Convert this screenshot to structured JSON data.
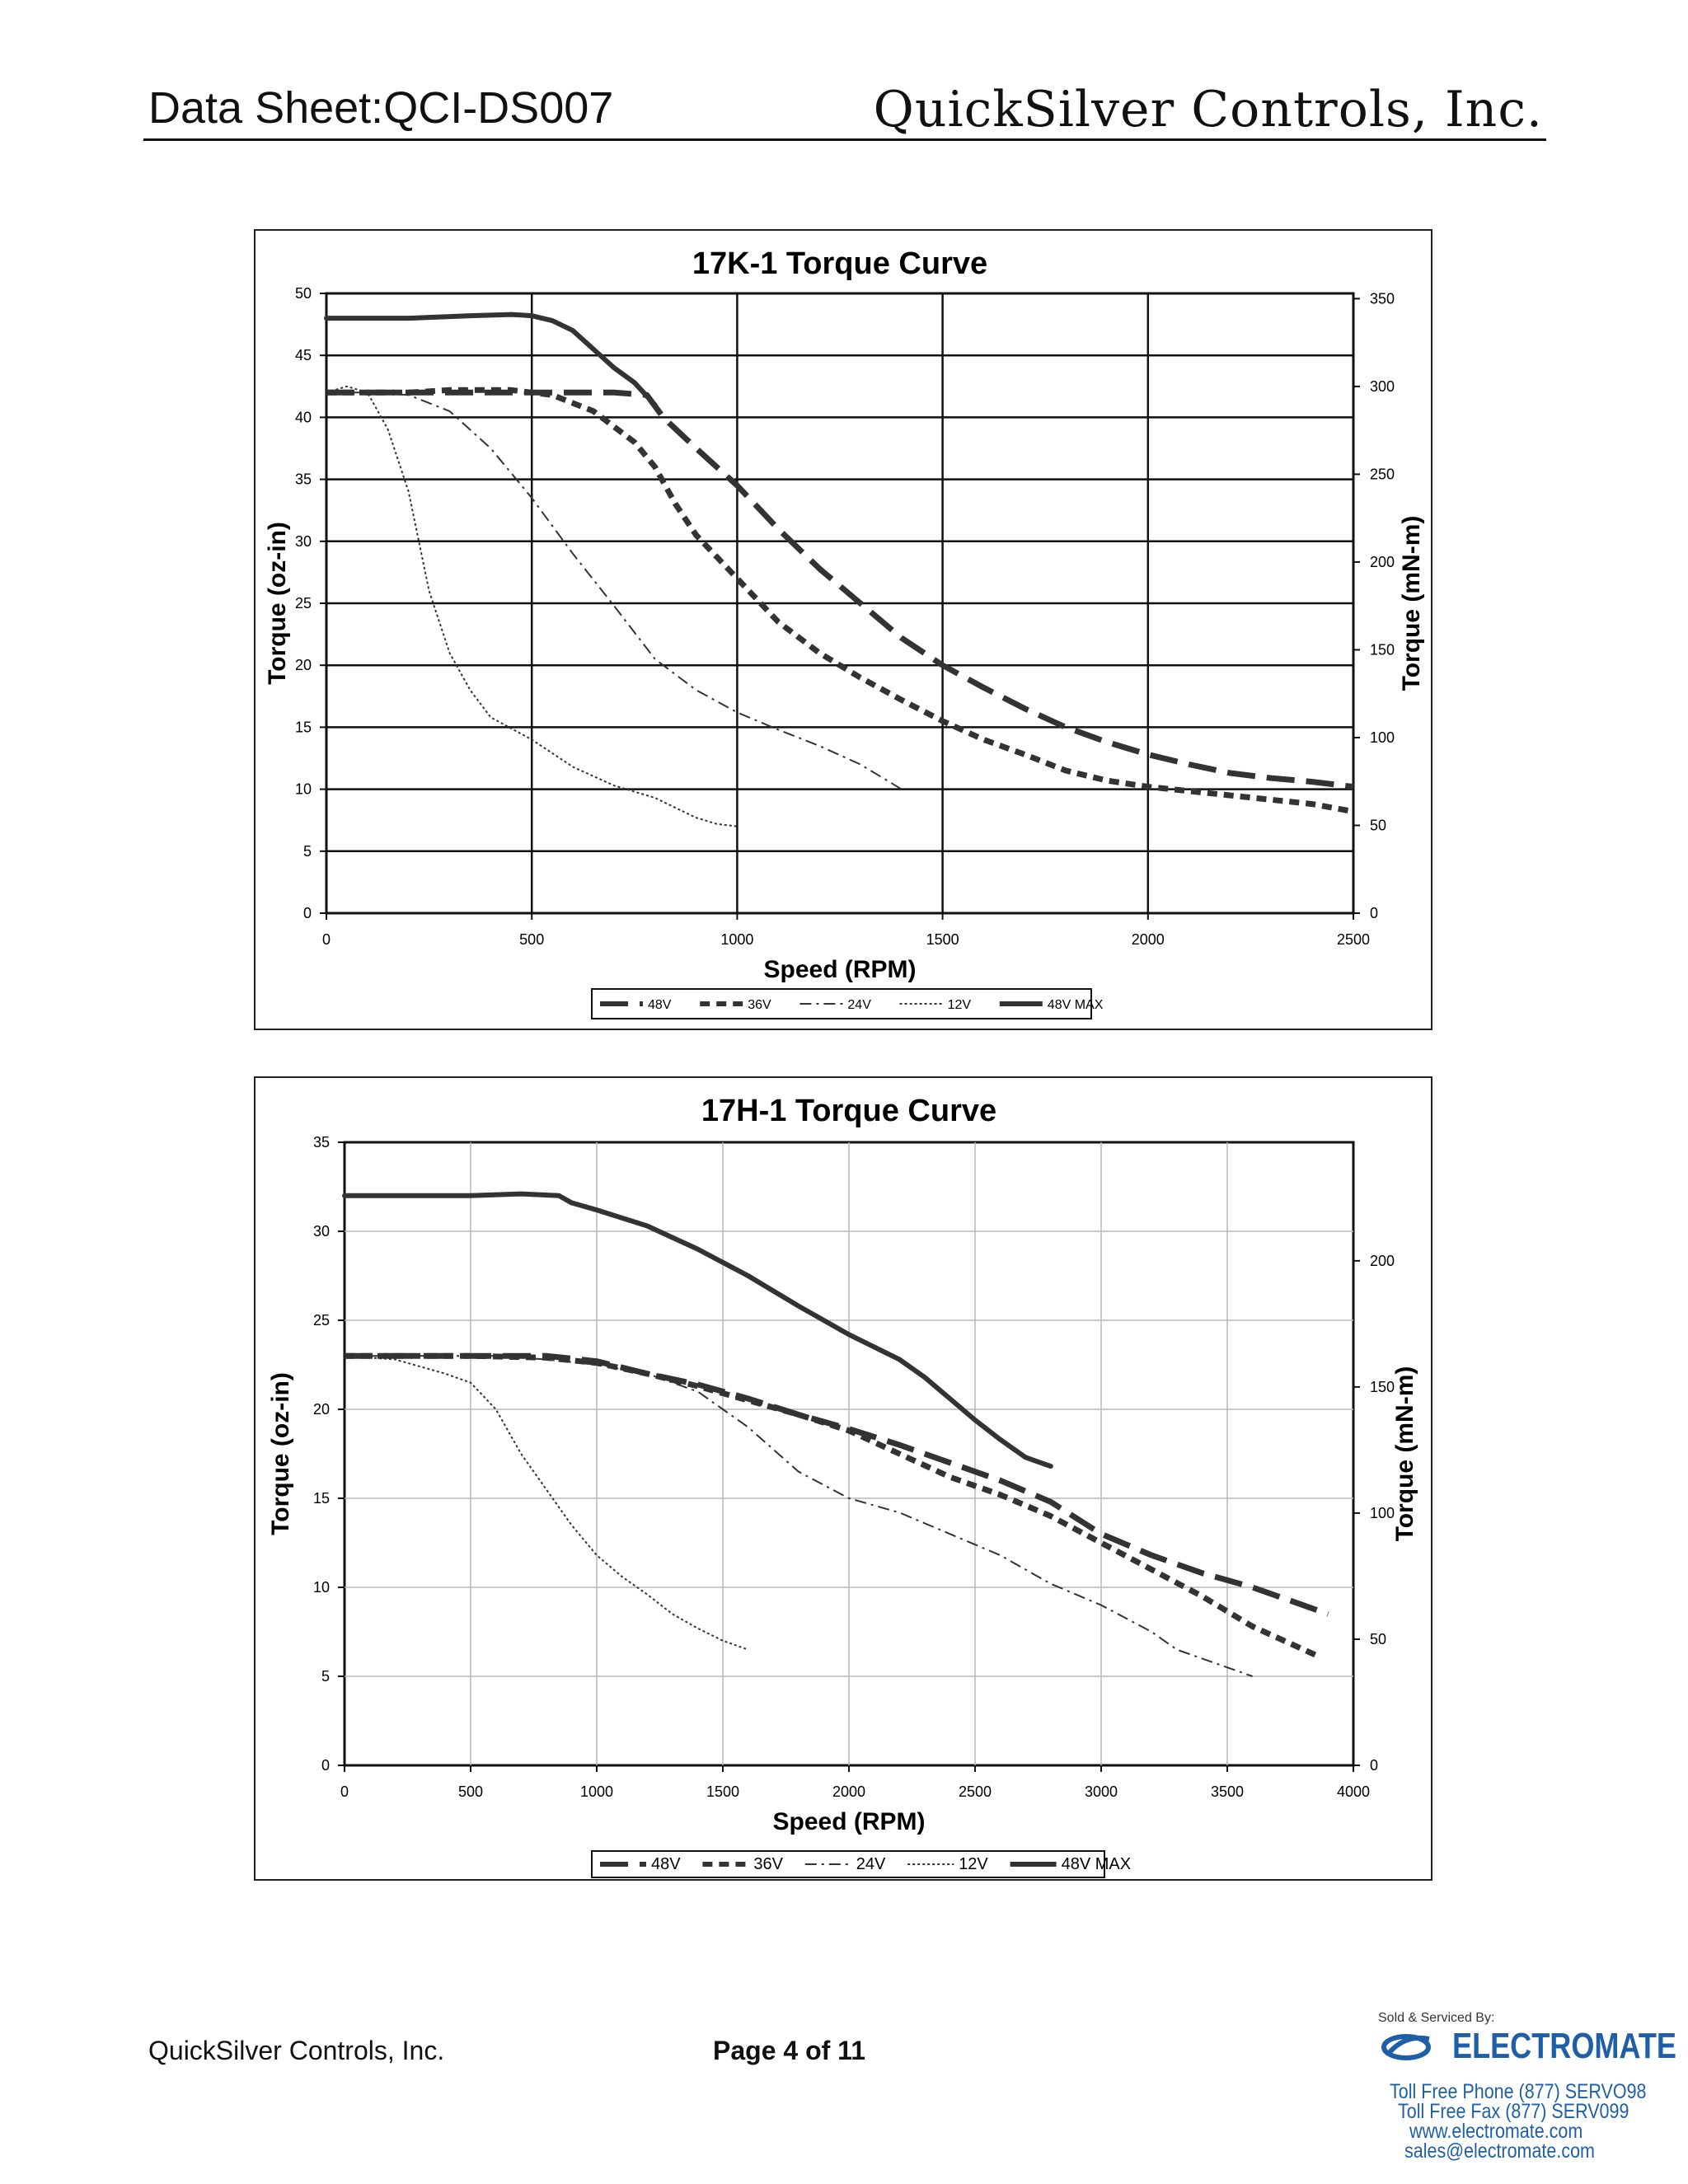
{
  "header": {
    "left": "Data Sheet:QCI-DS007",
    "right": "QuickSilver Controls, Inc."
  },
  "footer": {
    "company": "QuickSilver Controls, Inc.",
    "page": "Page 4 of 11"
  },
  "electromate": {
    "sold_by": "Sold & Serviced By:",
    "brand": "ELECTROMATE",
    "phone": "Toll Free Phone  (877) SERVO98",
    "fax": "Toll Free Fax  (877) SERV099",
    "web": "www.electromate.com",
    "email": "sales@electromate.com",
    "color": "#1f5fa8"
  },
  "chart_data": [
    {
      "type": "line",
      "title": "17K-1 Torque Curve",
      "xlabel": "Speed (RPM)",
      "ylabel": "Torque (oz-in)",
      "y2label": "Torque (mN-m)",
      "xlim": [
        0,
        2500
      ],
      "ylim": [
        0,
        50
      ],
      "y2lim": [
        0,
        353
      ],
      "xticks": [
        0,
        500,
        1000,
        1500,
        2000,
        2500
      ],
      "yticks": [
        0,
        5,
        10,
        15,
        20,
        25,
        30,
        35,
        40,
        45,
        50
      ],
      "y2ticks": [
        0,
        50,
        100,
        150,
        200,
        250,
        300,
        350
      ],
      "grid": "major, solid black",
      "legend_position": "bottom",
      "series": [
        {
          "name": "48V",
          "style": "long-dash",
          "points": [
            [
              0,
              42
            ],
            [
              200,
              42
            ],
            [
              400,
              42
            ],
            [
              600,
              42
            ],
            [
              700,
              42
            ],
            [
              780,
              41.8
            ],
            [
              820,
              40
            ],
            [
              900,
              37.5
            ],
            [
              1000,
              34.5
            ],
            [
              1100,
              31
            ],
            [
              1200,
              27.8
            ],
            [
              1300,
              25
            ],
            [
              1400,
              22.2
            ],
            [
              1500,
              20
            ],
            [
              1600,
              18.2
            ],
            [
              1700,
              16.5
            ],
            [
              1800,
              15
            ],
            [
              1900,
              13.8
            ],
            [
              2000,
              12.8
            ],
            [
              2100,
              12
            ],
            [
              2200,
              11.3
            ],
            [
              2300,
              10.9
            ],
            [
              2400,
              10.6
            ],
            [
              2500,
              10.2
            ]
          ]
        },
        {
          "name": "36V",
          "style": "short-dash",
          "points": [
            [
              0,
              42
            ],
            [
              200,
              42
            ],
            [
              300,
              42.2
            ],
            [
              450,
              42.2
            ],
            [
              550,
              41.8
            ],
            [
              650,
              40.5
            ],
            [
              750,
              38
            ],
            [
              800,
              36
            ],
            [
              850,
              33
            ],
            [
              900,
              30.5
            ],
            [
              1000,
              27
            ],
            [
              1100,
              23.5
            ],
            [
              1200,
              21
            ],
            [
              1300,
              19
            ],
            [
              1400,
              17.2
            ],
            [
              1500,
              15.5
            ],
            [
              1600,
              14
            ],
            [
              1700,
              12.8
            ],
            [
              1800,
              11.5
            ],
            [
              1900,
              10.7
            ],
            [
              2000,
              10.2
            ],
            [
              2200,
              9.5
            ],
            [
              2400,
              8.8
            ],
            [
              2500,
              8.2
            ]
          ]
        },
        {
          "name": "24V",
          "style": "dash-dot",
          "points": [
            [
              0,
              42
            ],
            [
              100,
              42
            ],
            [
              200,
              41.8
            ],
            [
              300,
              40.5
            ],
            [
              400,
              37.5
            ],
            [
              500,
              33.5
            ],
            [
              600,
              29
            ],
            [
              700,
              24.8
            ],
            [
              800,
              20.5
            ],
            [
              900,
              18
            ],
            [
              1000,
              16.2
            ],
            [
              1100,
              14.8
            ],
            [
              1200,
              13.5
            ],
            [
              1300,
              12
            ],
            [
              1400,
              10
            ]
          ]
        },
        {
          "name": "12V",
          "style": "dotted",
          "points": [
            [
              0,
              42
            ],
            [
              50,
              42.5
            ],
            [
              100,
              42
            ],
            [
              150,
              39
            ],
            [
              200,
              34
            ],
            [
              250,
              26
            ],
            [
              300,
              21
            ],
            [
              350,
              18
            ],
            [
              400,
              15.8
            ],
            [
              500,
              14
            ],
            [
              600,
              11.8
            ],
            [
              700,
              10.3
            ],
            [
              800,
              9.3
            ],
            [
              850,
              8.5
            ],
            [
              900,
              7.7
            ],
            [
              950,
              7.2
            ],
            [
              1000,
              7
            ]
          ]
        },
        {
          "name": "48V MAX",
          "style": "solid-thick",
          "points": [
            [
              0,
              48
            ],
            [
              200,
              48
            ],
            [
              350,
              48.2
            ],
            [
              450,
              48.3
            ],
            [
              500,
              48.2
            ],
            [
              550,
              47.8
            ],
            [
              600,
              47
            ],
            [
              650,
              45.5
            ],
            [
              700,
              44
            ],
            [
              750,
              42.8
            ],
            [
              800,
              41
            ]
          ]
        }
      ]
    },
    {
      "type": "line",
      "title": "17H-1 Torque Curve",
      "xlabel": "Speed (RPM)",
      "ylabel": "Torque (oz-in)",
      "y2label": "Torque (mN-m)",
      "xlim": [
        0,
        4000
      ],
      "ylim": [
        0,
        35
      ],
      "y2lim": [
        0,
        247
      ],
      "xticks": [
        0,
        500,
        1000,
        1500,
        2000,
        2500,
        3000,
        3500,
        4000
      ],
      "yticks": [
        0,
        5,
        10,
        15,
        20,
        25,
        30,
        35
      ],
      "y2ticks": [
        0,
        50,
        100,
        150,
        200
      ],
      "grid": "major, solid light gray",
      "legend_position": "bottom",
      "series": [
        {
          "name": "48V",
          "style": "long-dash",
          "points": [
            [
              0,
              23
            ],
            [
              500,
              23
            ],
            [
              800,
              23
            ],
            [
              1000,
              22.7
            ],
            [
              1200,
              22
            ],
            [
              1400,
              21.4
            ],
            [
              1600,
              20.6
            ],
            [
              1800,
              19.7
            ],
            [
              2000,
              18.9
            ],
            [
              2200,
              18
            ],
            [
              2400,
              17
            ],
            [
              2600,
              16
            ],
            [
              2800,
              14.8
            ],
            [
              3000,
              13
            ],
            [
              3200,
              11.8
            ],
            [
              3400,
              10.8
            ],
            [
              3600,
              10
            ],
            [
              3800,
              9
            ],
            [
              3900,
              8.5
            ]
          ]
        },
        {
          "name": "36V",
          "style": "short-dash",
          "points": [
            [
              0,
              23
            ],
            [
              500,
              23
            ],
            [
              800,
              22.9
            ],
            [
              1000,
              22.6
            ],
            [
              1200,
              22
            ],
            [
              1400,
              21.3
            ],
            [
              1600,
              20.5
            ],
            [
              1800,
              19.7
            ],
            [
              2000,
              18.8
            ],
            [
              2200,
              17.5
            ],
            [
              2400,
              16.2
            ],
            [
              2600,
              15.2
            ],
            [
              2800,
              14
            ],
            [
              3000,
              12.5
            ],
            [
              3200,
              11
            ],
            [
              3400,
              9.5
            ],
            [
              3600,
              7.8
            ],
            [
              3850,
              6.2
            ]
          ]
        },
        {
          "name": "24V",
          "style": "dash-dot",
          "points": [
            [
              0,
              23
            ],
            [
              300,
              23
            ],
            [
              600,
              23
            ],
            [
              800,
              22.8
            ],
            [
              1000,
              22.5
            ],
            [
              1200,
              22
            ],
            [
              1400,
              21
            ],
            [
              1500,
              20
            ],
            [
              1600,
              19
            ],
            [
              1800,
              16.5
            ],
            [
              2000,
              15
            ],
            [
              2200,
              14.2
            ],
            [
              2400,
              13
            ],
            [
              2600,
              11.8
            ],
            [
              2800,
              10.2
            ],
            [
              3000,
              9
            ],
            [
              3200,
              7.5
            ],
            [
              3300,
              6.5
            ],
            [
              3400,
              6
            ],
            [
              3600,
              5
            ]
          ]
        },
        {
          "name": "12V",
          "style": "dotted",
          "points": [
            [
              0,
              23
            ],
            [
              200,
              22.8
            ],
            [
              400,
              22
            ],
            [
              500,
              21.5
            ],
            [
              600,
              20
            ],
            [
              700,
              17.5
            ],
            [
              800,
              15.5
            ],
            [
              900,
              13.5
            ],
            [
              1000,
              11.8
            ],
            [
              1100,
              10.6
            ],
            [
              1200,
              9.6
            ],
            [
              1300,
              8.5
            ],
            [
              1400,
              7.7
            ],
            [
              1500,
              7
            ],
            [
              1600,
              6.5
            ]
          ]
        },
        {
          "name": "48V MAX",
          "style": "solid-thick",
          "points": [
            [
              0,
              32
            ],
            [
              300,
              32
            ],
            [
              500,
              32
            ],
            [
              700,
              32.1
            ],
            [
              850,
              32
            ],
            [
              900,
              31.6
            ],
            [
              1000,
              31.2
            ],
            [
              1200,
              30.3
            ],
            [
              1400,
              29
            ],
            [
              1600,
              27.5
            ],
            [
              1800,
              25.8
            ],
            [
              2000,
              24.2
            ],
            [
              2200,
              22.8
            ],
            [
              2300,
              21.8
            ],
            [
              2400,
              20.6
            ],
            [
              2500,
              19.4
            ],
            [
              2600,
              18.3
            ],
            [
              2700,
              17.3
            ],
            [
              2800,
              16.8
            ]
          ]
        }
      ]
    }
  ]
}
